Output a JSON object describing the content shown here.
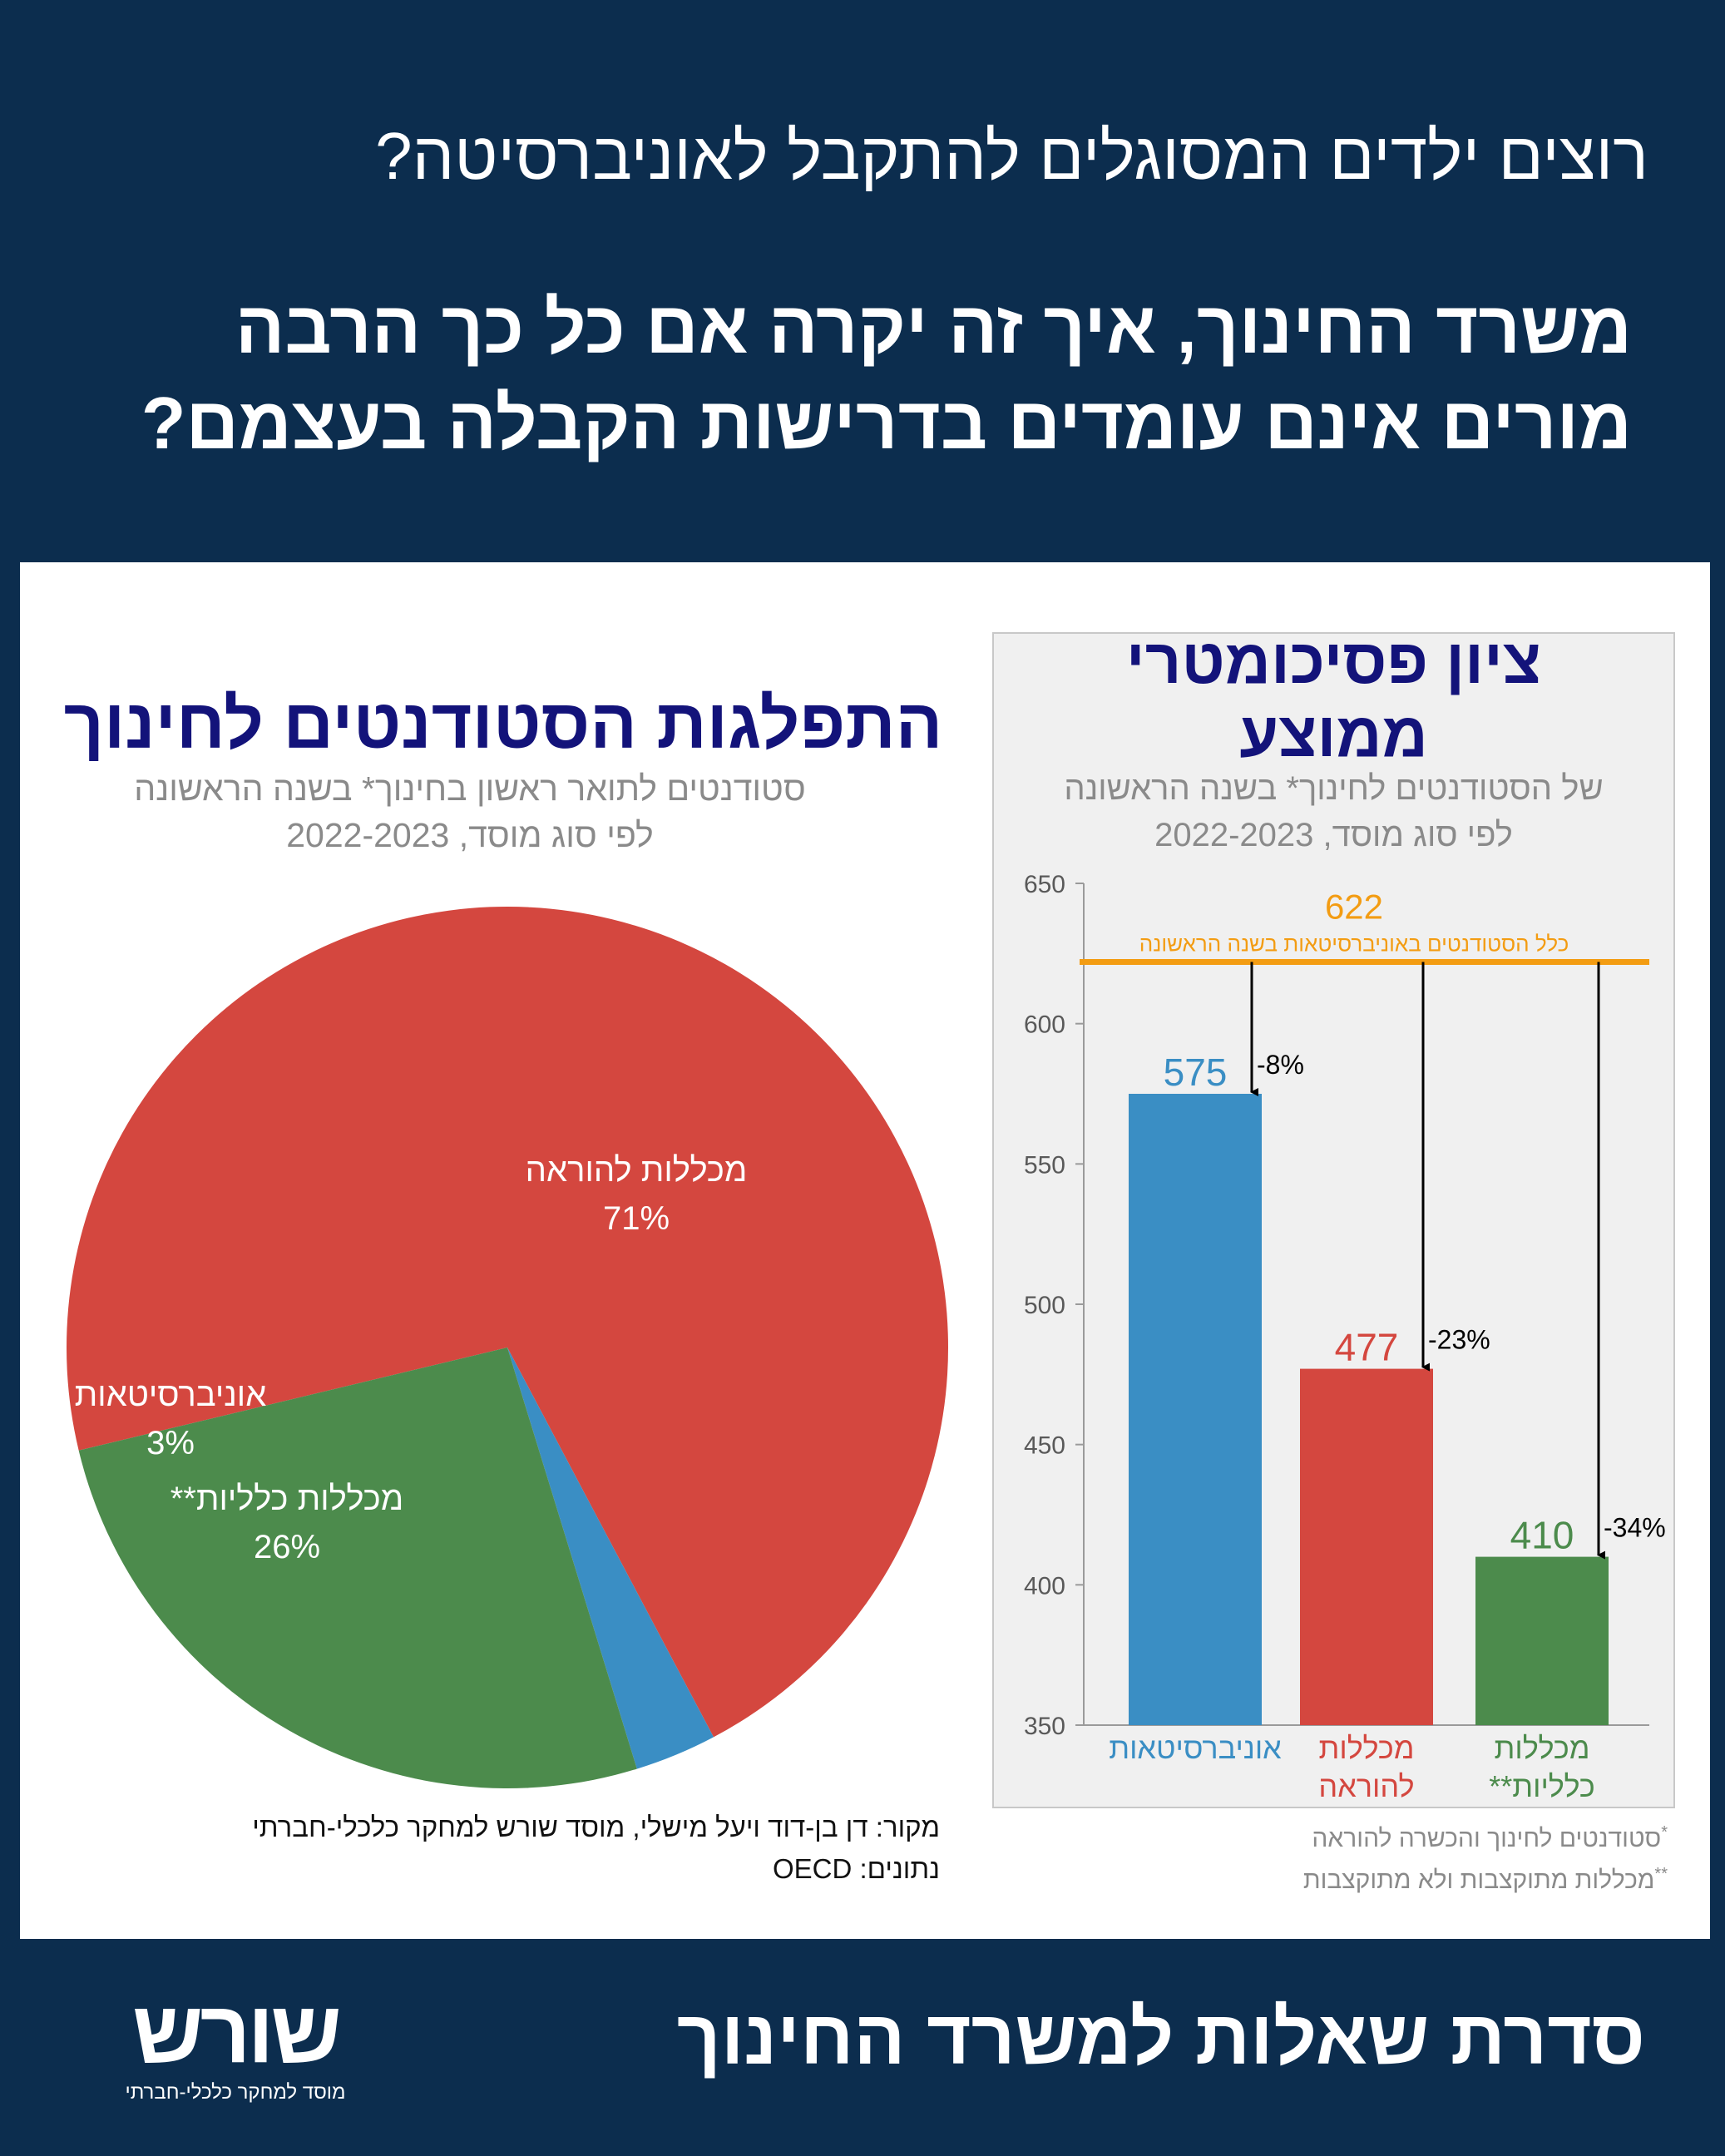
{
  "header": {
    "question_1": "רוצים ילדים המסוגלים להתקבל לאוניברסיטה?",
    "question_2": "משרד החינוך, איך זה יקרה אם כל כך הרבה מורים אינם עומדים בדרישות הקבלה בעצמם?"
  },
  "colors": {
    "background": "#0c2d4e",
    "title_blue": "#13137a",
    "universities": "#3a8ec4",
    "teacher_colleges": "#d4473f",
    "general_colleges": "#4c8b4c",
    "reference_line": "#f39c12"
  },
  "chart_data": [
    {
      "type": "pie",
      "title": "התפלגות הסטודנטים לחינוך",
      "subtitle_line1": "סטודנטים לתואר ראשון בחינוך* בשנה הראשונה",
      "subtitle_line2": "לפי סוג מוסד, 2022-2023",
      "slices": [
        {
          "label": "מכללות להוראה",
          "value": 71,
          "display": "71%",
          "color": "#d4473f"
        },
        {
          "label": "אוניברסיטאות",
          "value": 3,
          "display": "3%",
          "color": "#3a8ec4"
        },
        {
          "label": "מכללות כלליות**",
          "value": 26,
          "display": "26%",
          "color": "#4c8b4c"
        }
      ]
    },
    {
      "type": "bar",
      "title_line1": "ציון פסיכומטרי",
      "title_line2": "ממוצע",
      "subtitle_line1": "של הסטודנטים לחינוך* בשנה הראשונה",
      "subtitle_line2": "לפי סוג מוסד, 2022-2023",
      "categories": [
        {
          "line1": "אוניברסיטאות",
          "line2": "",
          "color": "#3a8ec4"
        },
        {
          "line1": "מכללות",
          "line2": "להוראה",
          "color": "#d4473f"
        },
        {
          "line1": "מכללות",
          "line2": "כלליות**",
          "color": "#4c8b4c"
        }
      ],
      "values": [
        575,
        477,
        410
      ],
      "value_labels": [
        "575",
        "477",
        "410"
      ],
      "differences": [
        "-8%",
        "-23%",
        "-34%"
      ],
      "reference": {
        "value": 622,
        "label": "622",
        "caption": "כלל הסטודנטים באוניברסיטאות בשנה הראשונה"
      },
      "ylim": [
        350,
        650
      ],
      "yticks": [
        350,
        400,
        450,
        500,
        550,
        600,
        650
      ],
      "grid": false
    }
  ],
  "source": {
    "line1": "מקור: דן בן-דוד ויעל מישלי, מוסד שורש למחקר כלכלי-חברתי",
    "line2": "נתונים: OECD"
  },
  "notes": {
    "note1_mark": "*",
    "note1": "סטודנטים לחינוך והכשרה להוראה",
    "note2_mark": "**",
    "note2": "מכללות מתוקצבות ולא מתוקצבות"
  },
  "footer": {
    "title": "סדרת שאלות למשרד החינוך",
    "logo_word": "שורש",
    "logo_tagline": "מוסד למחקר כלכלי-חברתי"
  }
}
